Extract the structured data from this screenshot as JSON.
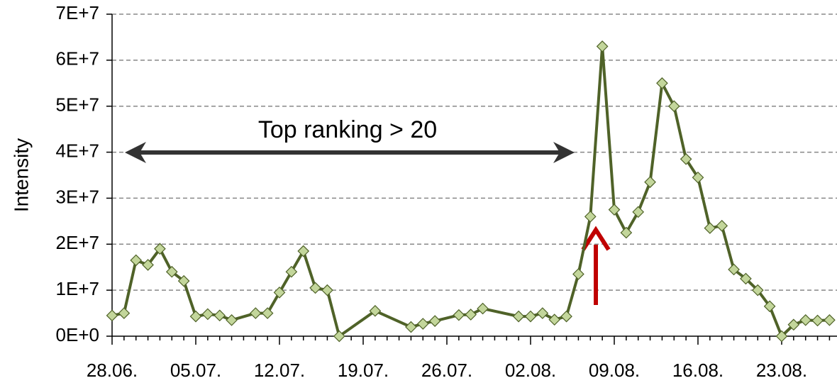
{
  "chart_data": {
    "type": "line",
    "y_label": "Intensity",
    "annotations": [
      "Top ranking > 20"
    ],
    "categories": [
      "28.06.",
      null,
      null,
      null,
      null,
      null,
      null,
      "05.07.",
      null,
      null,
      null,
      null,
      null,
      null,
      "12.07.",
      null,
      null,
      null,
      null,
      null,
      null,
      "19.07.",
      null,
      null,
      null,
      null,
      null,
      null,
      "26.07.",
      null,
      null,
      null,
      null,
      null,
      null,
      "02.08.",
      null,
      null,
      null,
      null,
      null,
      null,
      "09.08.",
      null,
      null,
      null,
      null,
      null,
      null,
      "16.08.",
      null,
      null,
      null,
      null,
      null,
      null,
      "23.08.",
      null,
      null,
      null,
      null
    ],
    "values": [
      4500000,
      5000000,
      16500000,
      15500000,
      19000000,
      14000000,
      12000000,
      4300000,
      4800000,
      4500000,
      3500000,
      null,
      5000000,
      5000000,
      9500000,
      14000000,
      18500000,
      10500000,
      10000000,
      0,
      null,
      null,
      5500000,
      null,
      null,
      2000000,
      2700000,
      3300000,
      null,
      4600000,
      4700000,
      6000000,
      null,
      null,
      4300000,
      4300000,
      5000000,
      3600000,
      4300000,
      13500000,
      26000000,
      63000000,
      27500000,
      22500000,
      27000000,
      33500000,
      55000000,
      50000000,
      38500000,
      34500000,
      23500000,
      24000000,
      14500000,
      12500000,
      10000000,
      6500000,
      0,
      2500000,
      3500000,
      3400000,
      3500000
    ],
    "span_gaps": true,
    "color": "#4f6228",
    "marker_color": "#c3d69b",
    "ylim": [
      0,
      70000000
    ],
    "yticks": [
      {
        "value": 0,
        "label": "0E+0"
      },
      {
        "value": 10000000,
        "label": "1E+7"
      },
      {
        "value": 20000000,
        "label": "2E+7"
      },
      {
        "value": 30000000,
        "label": "3E+7"
      },
      {
        "value": 40000000,
        "label": "4E+7"
      },
      {
        "value": 50000000,
        "label": "5E+7"
      },
      {
        "value": 60000000,
        "label": "6E+7"
      },
      {
        "value": 70000000,
        "label": "7E+7"
      }
    ],
    "grid": true
  }
}
